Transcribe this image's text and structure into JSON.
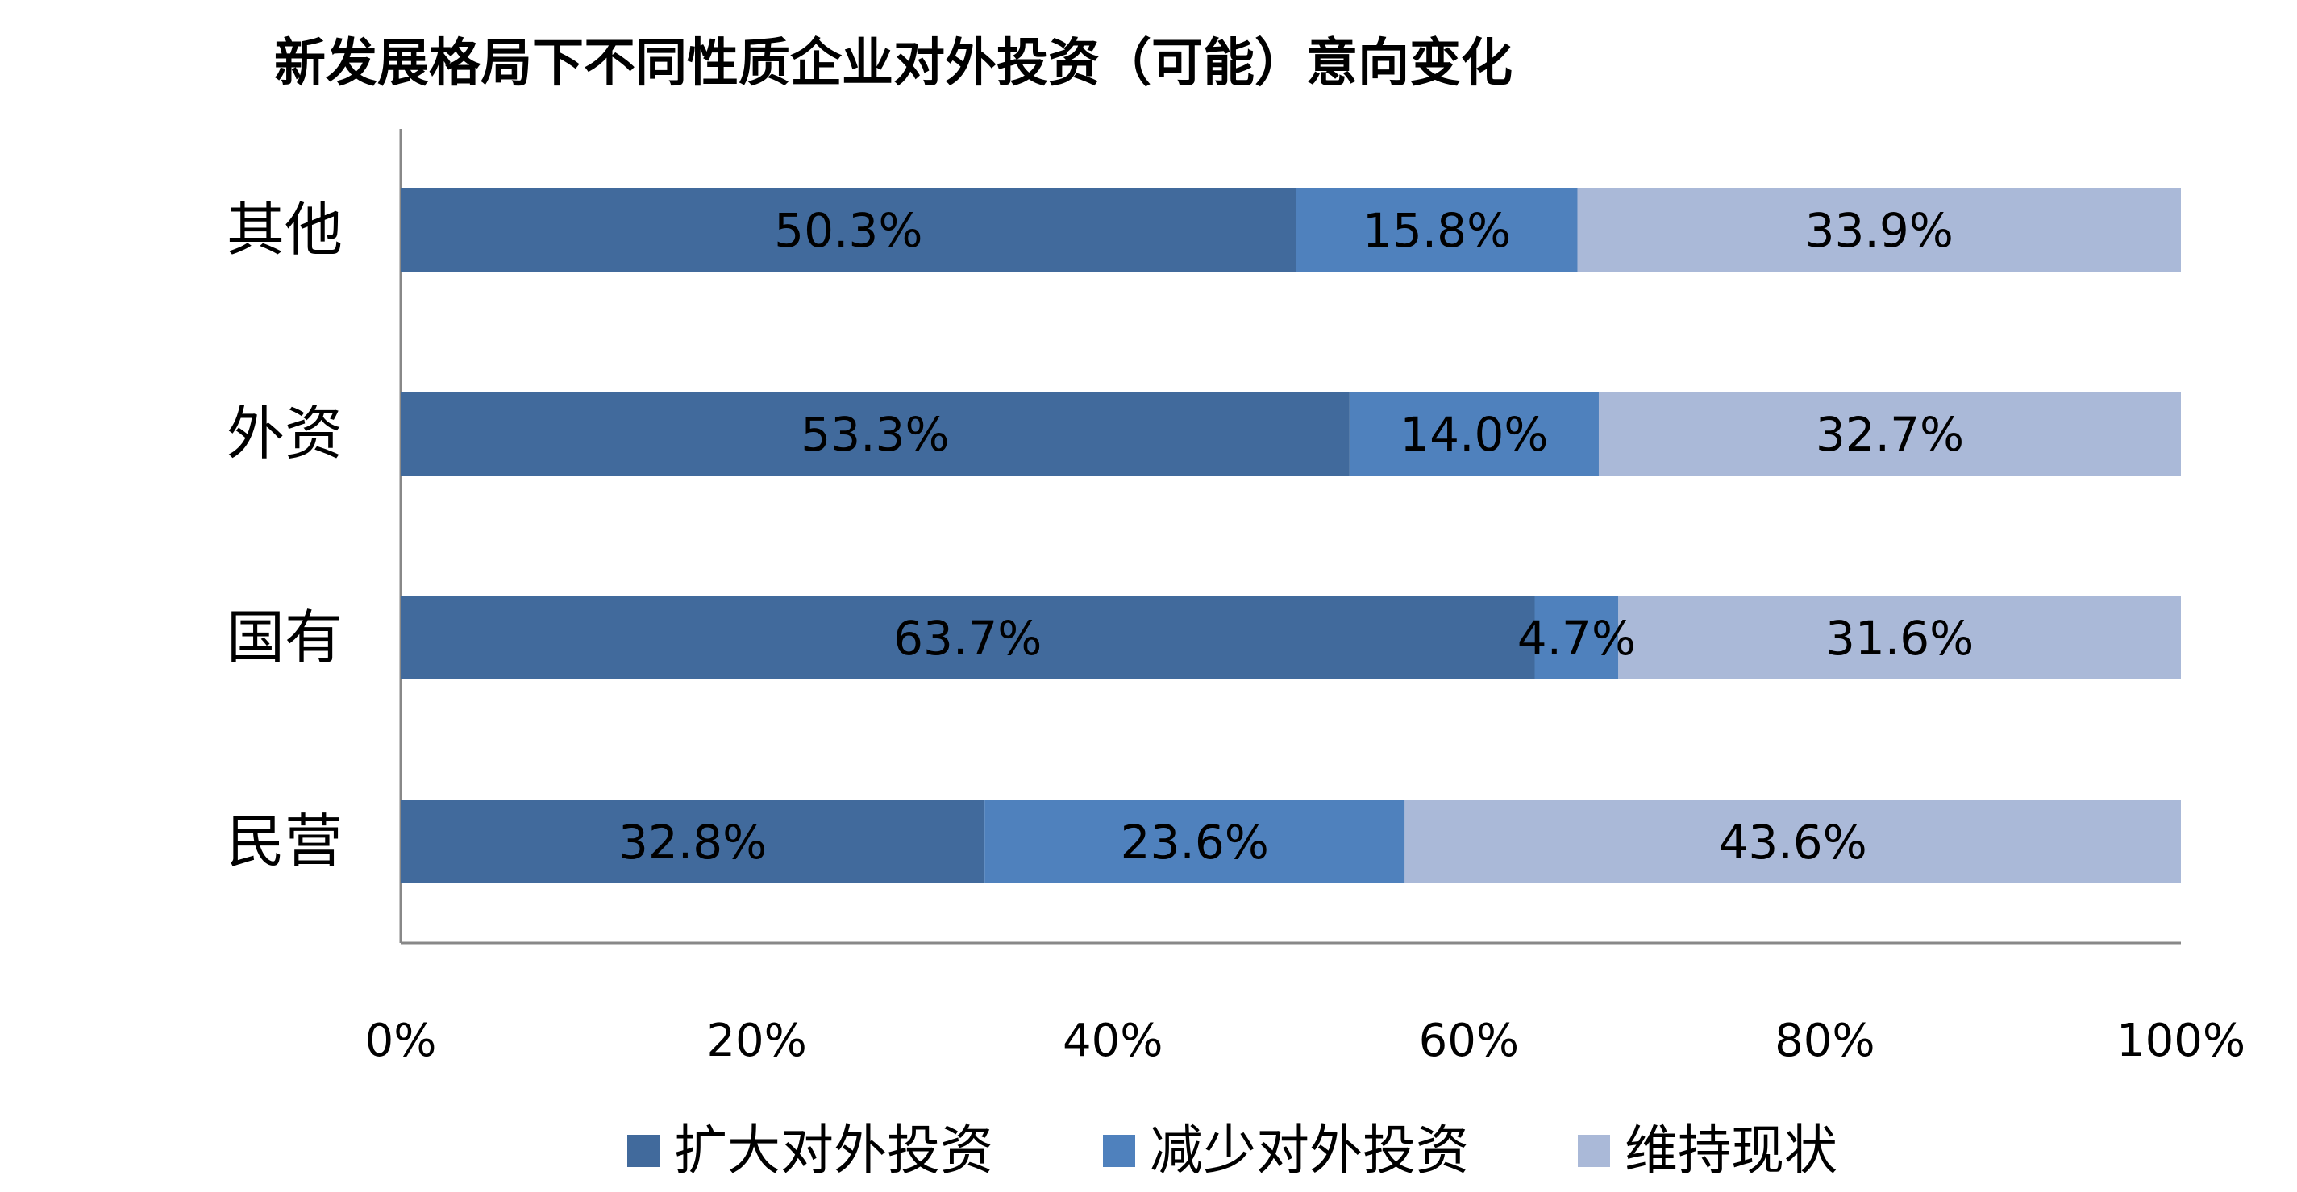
{
  "chart_data": {
    "type": "bar",
    "orientation": "horizontal",
    "stacked": true,
    "title": "新发展格局下不同性质企业对外投资（可能）意向变化",
    "xlabel": "",
    "ylabel": "",
    "categories": [
      "其他",
      "外资",
      "国有",
      "民营"
    ],
    "series": [
      {
        "name": "扩大对外投资",
        "color": "#416a9c",
        "values": [
          50.3,
          53.3,
          63.7,
          32.8
        ],
        "labels": [
          "50.3%",
          "53.3%",
          "63.7%",
          "32.8%"
        ]
      },
      {
        "name": "减少对外投资",
        "color": "#4f81bd",
        "values": [
          15.8,
          14.0,
          4.7,
          23.6
        ],
        "labels": [
          "15.8%",
          "14.0%",
          "4.7%",
          "23.6%"
        ]
      },
      {
        "name": "维持现状",
        "color": "#aab9d8",
        "values": [
          33.9,
          32.7,
          31.6,
          43.6
        ],
        "labels": [
          "33.9%",
          "32.7%",
          "31.6%",
          "43.6%"
        ]
      }
    ],
    "xlim": [
      0,
      100
    ],
    "xticks": [
      "0%",
      "20%",
      "40%",
      "60%",
      "80%",
      "100%"
    ],
    "grid": false,
    "legend_position": "bottom"
  }
}
